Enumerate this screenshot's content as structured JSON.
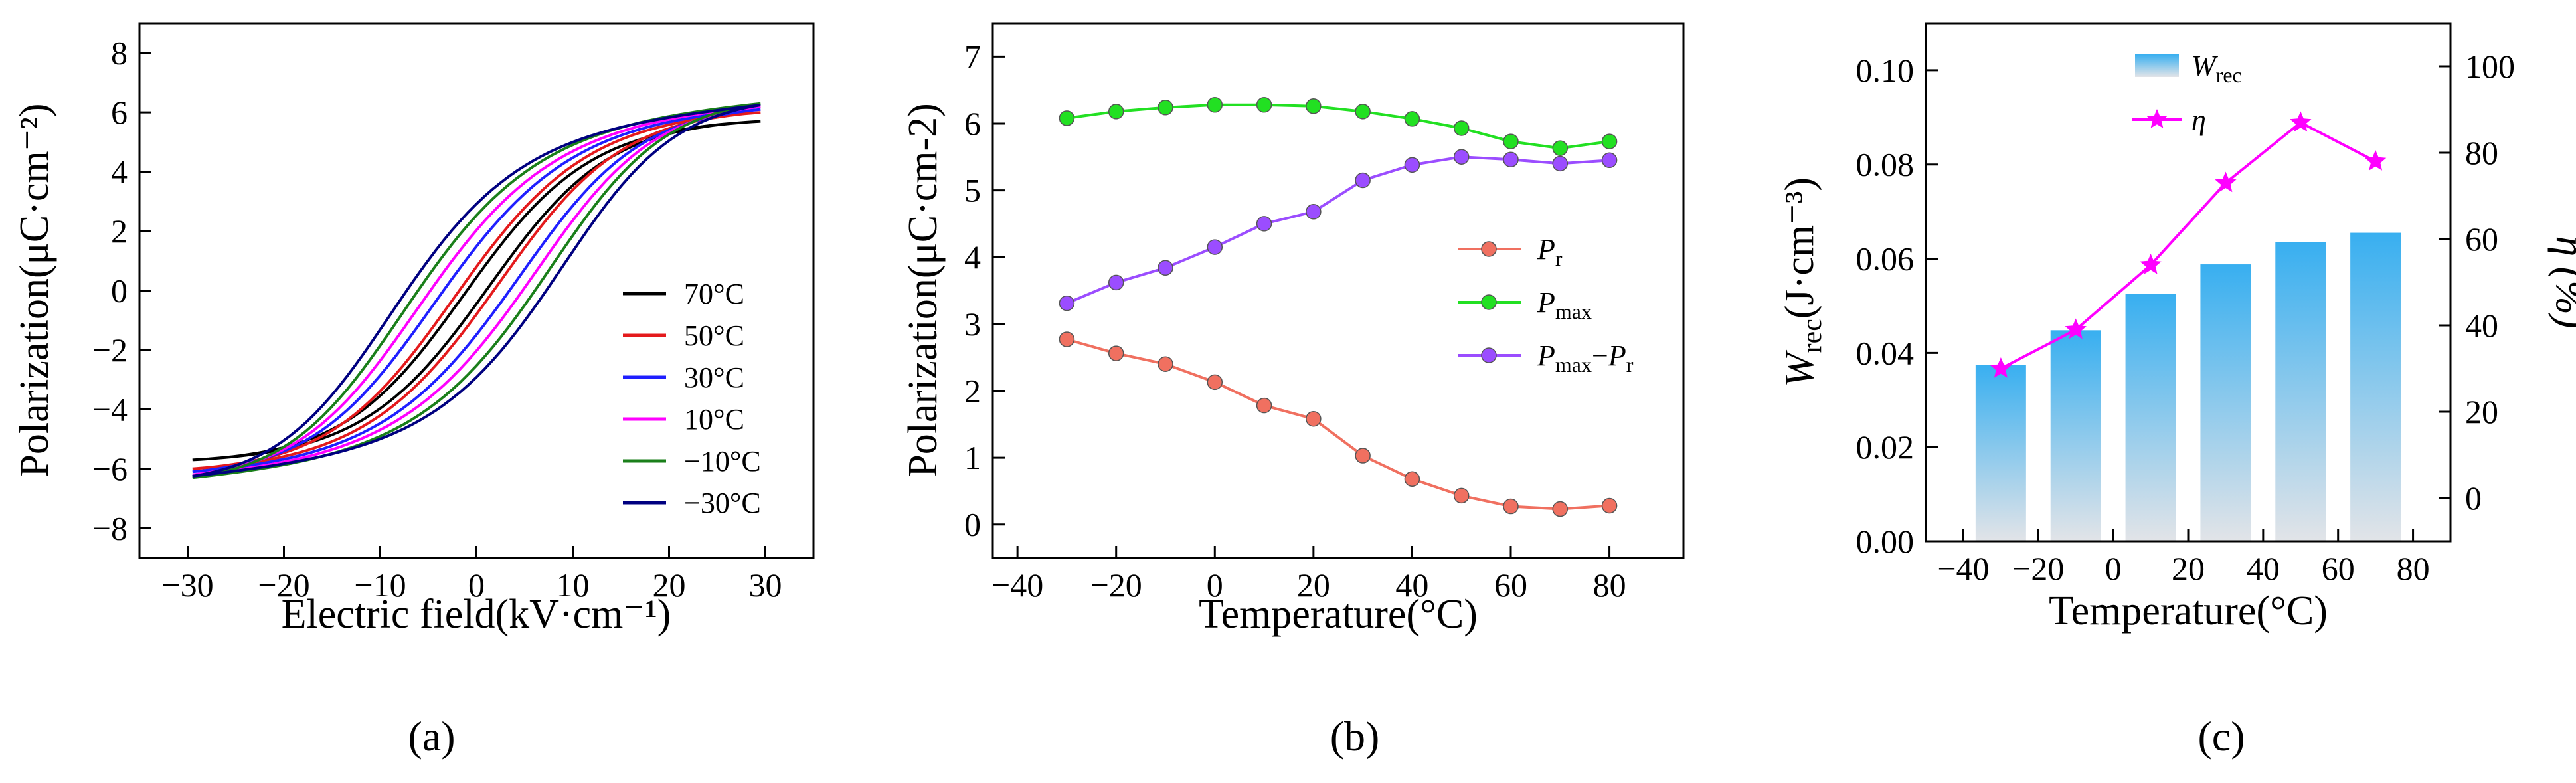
{
  "chart_data": [
    {
      "panel": "(a)",
      "type": "line",
      "xlabel": "Electric field(kV·cm⁻¹)",
      "ylabel": "Polarization(μC·cm⁻²)",
      "xlim": [
        -35,
        35
      ],
      "ylim": [
        -9,
        9
      ],
      "xticks": [
        "−30",
        "−20",
        "−10",
        "0",
        "10",
        "20",
        "30"
      ],
      "yticks": [
        "−8",
        "−6",
        "−4",
        "−2",
        "0",
        "2",
        "4",
        "6",
        "8"
      ],
      "legend_position": "bottom-right",
      "series": [
        {
          "name": "70°C",
          "color": "#000000",
          "pmax": 5.7,
          "ec": 1.0,
          "pr": 0.2
        },
        {
          "name": "50°C",
          "color": "#e41a1c",
          "pmax": 6.0,
          "ec": 1.8,
          "pr": 0.3
        },
        {
          "name": "30°C",
          "color": "#1f1fff",
          "pmax": 6.1,
          "ec": 3.5,
          "pr": 0.7
        },
        {
          "name": "10°C",
          "color": "#ff00ff",
          "pmax": 6.2,
          "ec": 5.0,
          "pr": 1.5
        },
        {
          "name": "−10°C",
          "color": "#1a7f1a",
          "pmax": 6.3,
          "ec": 6.5,
          "pr": 2.1
        },
        {
          "name": "−30°C",
          "color": "#000080",
          "pmax": 6.25,
          "ec": 8.0,
          "pr": 2.6
        }
      ]
    },
    {
      "panel": "(b)",
      "type": "line",
      "xlabel": "Temperature(°C)",
      "ylabel": "Polarization(μC·cm-2)",
      "xlim": [
        -45,
        95
      ],
      "ylim": [
        -0.5,
        7.5
      ],
      "xticks": [
        "−40",
        "−20",
        "0",
        "20",
        "40",
        "60",
        "80"
      ],
      "yticks": [
        "0",
        "1",
        "2",
        "3",
        "4",
        "5",
        "6",
        "7"
      ],
      "legend_position": "center-right",
      "x": [
        -30,
        -20,
        -10,
        0,
        10,
        20,
        30,
        40,
        50,
        60,
        70,
        80
      ],
      "series": [
        {
          "name": "Pr",
          "name_main": "P",
          "name_sub": "r",
          "color": "#f07060",
          "values": [
            2.77,
            2.56,
            2.4,
            2.13,
            1.78,
            1.58,
            1.03,
            0.68,
            0.43,
            0.27,
            0.23,
            0.28
          ]
        },
        {
          "name": "Pmax",
          "name_main": "P",
          "name_sub": "max",
          "color": "#22e022",
          "values": [
            6.08,
            6.18,
            6.24,
            6.28,
            6.28,
            6.26,
            6.18,
            6.07,
            5.93,
            5.73,
            5.63,
            5.73
          ]
        },
        {
          "name": "Pmax−Pr",
          "name_main": "P",
          "name_sub": "max",
          "name_mid": "−",
          "name_main2": "P",
          "name_sub2": "r",
          "color": "#9b4dff",
          "values": [
            3.31,
            3.62,
            3.84,
            4.15,
            4.5,
            4.68,
            5.15,
            5.38,
            5.5,
            5.46,
            5.4,
            5.45
          ]
        }
      ]
    },
    {
      "panel": "(c)",
      "type": "bar",
      "xlabel": "Temperature(°C)",
      "ylabel": "Wrec(J·cm⁻³)",
      "ylabel_main": "W",
      "ylabel_sub": "rec",
      "ylabel_rest": "(J·cm⁻³)",
      "y2label": "η (%)",
      "xlim": [
        -50,
        90
      ],
      "ylim": [
        0,
        0.11
      ],
      "y2lim": [
        -10,
        110
      ],
      "xticks": [
        "−40",
        "−20",
        "0",
        "20",
        "40",
        "60",
        "80"
      ],
      "yticks": [
        "0.00",
        "0.02",
        "0.04",
        "0.06",
        "0.08",
        "0.10"
      ],
      "y2ticks": [
        "0",
        "20",
        "40",
        "60",
        "80",
        "100"
      ],
      "legend_position": "top-center",
      "x": [
        -30,
        -10,
        10,
        30,
        50,
        70
      ],
      "series": [
        {
          "name": "Wrec",
          "name_main": "W",
          "name_sub": "rec",
          "kind": "bar",
          "axis": "left",
          "color": "#3bb0f0",
          "values": [
            0.0375,
            0.0448,
            0.0525,
            0.0588,
            0.0635,
            0.0655
          ]
        },
        {
          "name": "η",
          "kind": "line",
          "axis": "right",
          "color": "#ff00ff",
          "values": [
            30,
            39,
            54,
            73,
            87,
            78
          ]
        }
      ]
    }
  ]
}
